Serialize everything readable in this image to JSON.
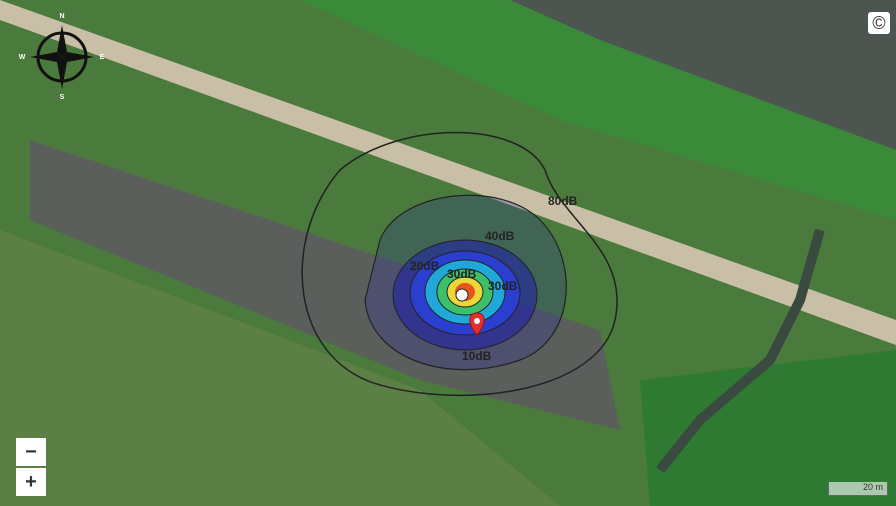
{
  "compass": {
    "north": "N",
    "east": "E",
    "south": "S",
    "west": "W"
  },
  "copyright": "©",
  "zoom": {
    "out": "−",
    "in": "+"
  },
  "scale": "20 m",
  "contour_labels": [
    "80dB",
    "40dB",
    "20dB",
    "30dB",
    "30dB",
    "10dB"
  ]
}
